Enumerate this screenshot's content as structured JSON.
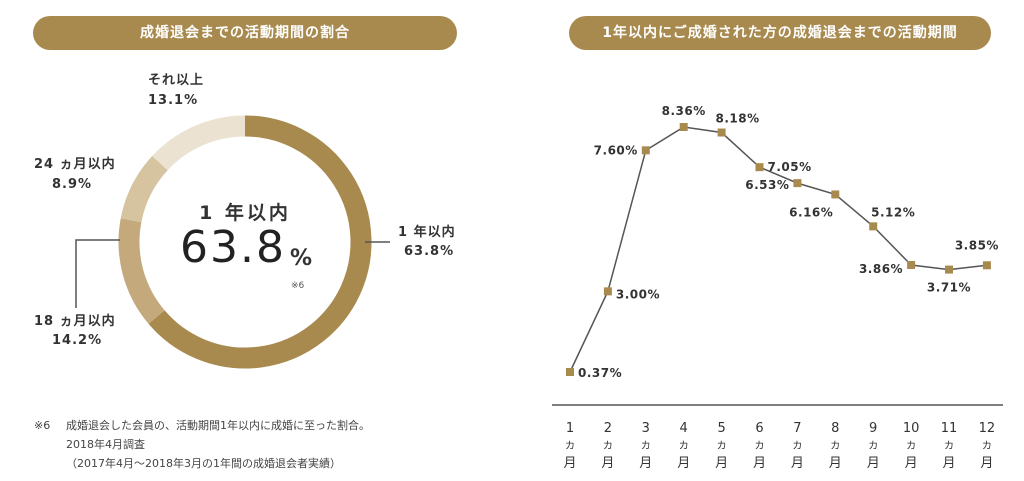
{
  "left": {
    "header": "成婚退会までの活動期間の割合",
    "center": {
      "title": "1 年以内",
      "value": "63.8",
      "unit": "%",
      "note": "※6"
    },
    "labels": {
      "one_year": {
        "name": "1 年以内",
        "pct": "63.8%"
      },
      "eighteen": {
        "name": "18 ヵ月以内",
        "pct": "14.2%"
      },
      "twentyfour": {
        "name": "24 ヵ月以内",
        "pct": "8.9%"
      },
      "over": {
        "name": "それ以上",
        "pct": "13.1%"
      }
    },
    "footnote": {
      "mark": "※6",
      "line1": "成婚退会した会員の、活動期間1年以内に成婚に至った割合。",
      "line2": "2018年4月調査",
      "line3": "（2017年4月～2018年3月の1年間の成婚退会者実績）"
    }
  },
  "right": {
    "header": "1年以内にご成婚された方の成婚退会までの活動期間"
  },
  "chart_data": [
    {
      "type": "pie",
      "title": "成婚退会までの活動期間の割合",
      "categories": [
        "1 年以内",
        "18 ヵ月以内",
        "24 ヵ月以内",
        "それ以上"
      ],
      "values": [
        63.8,
        14.2,
        8.9,
        13.1
      ],
      "colors": [
        "#a88a4e",
        "#c4a97c",
        "#d6c3a0",
        "#ebe2d1"
      ]
    },
    {
      "type": "line",
      "title": "1年以内にご成婚された方の成婚退会までの活動期間",
      "categories": [
        "1",
        "2",
        "3",
        "4",
        "5",
        "6",
        "7",
        "8",
        "9",
        "10",
        "11",
        "12"
      ],
      "category_unit": [
        "カ",
        "月"
      ],
      "values": [
        0.37,
        3.0,
        7.6,
        8.36,
        8.18,
        7.05,
        6.53,
        6.16,
        5.12,
        3.86,
        3.71,
        3.85
      ],
      "value_labels": [
        "0.37%",
        "3.00%",
        "7.60%",
        "8.36%",
        "8.18%",
        "7.05%",
        "6.53%",
        "6.16%",
        "5.12%",
        "3.86%",
        "3.71%",
        "3.85%"
      ],
      "ylim": [
        0,
        9
      ],
      "grid": false,
      "line_color": "#555555",
      "marker_color": "#a88a4e"
    }
  ]
}
